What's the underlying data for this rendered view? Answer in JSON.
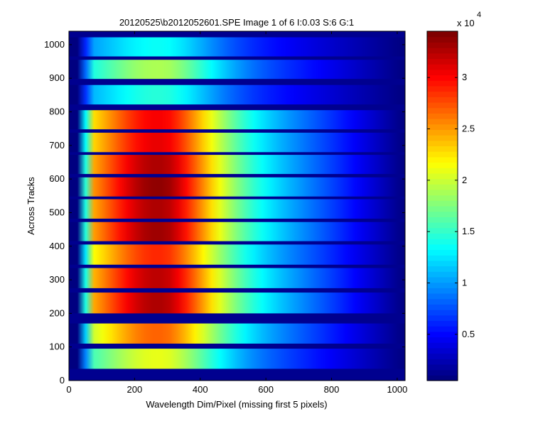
{
  "chart_data": {
    "type": "heatmap",
    "title": "20120525\\b2012052601.SPE  Image 1 of 6  I:0.03  S:6  G:1",
    "xlabel": "Wavelength Dim/Pixel (missing first 5 pixels)",
    "ylabel": "Across Tracks",
    "xlim": [
      0,
      1024
    ],
    "ylim": [
      0,
      1040
    ],
    "x_ticks": [
      "0",
      "200",
      "400",
      "600",
      "800",
      "1000"
    ],
    "y_ticks": [
      "0",
      "100",
      "200",
      "300",
      "400",
      "500",
      "600",
      "700",
      "800",
      "900",
      "1000"
    ],
    "colormap": "jet",
    "colorbar": {
      "range": [
        500,
        34500
      ],
      "multiplier": "x 10",
      "exponent": "4",
      "ticks": [
        "0.5",
        "1",
        "1.5",
        "2",
        "2.5",
        "3"
      ]
    },
    "tracks": [
      {
        "y0": 35,
        "y1": 95,
        "peak": 21000
      },
      {
        "y0": 110,
        "y1": 170,
        "peak": 27000
      },
      {
        "y0": 200,
        "y1": 262,
        "peak": 33000
      },
      {
        "y0": 275,
        "y1": 335,
        "peak": 32500
      },
      {
        "y0": 345,
        "y1": 405,
        "peak": 29000
      },
      {
        "y0": 415,
        "y1": 472,
        "peak": 33500
      },
      {
        "y0": 482,
        "y1": 540,
        "peak": 33000
      },
      {
        "y0": 548,
        "y1": 605,
        "peak": 34000
      },
      {
        "y0": 615,
        "y1": 672,
        "peak": 33000
      },
      {
        "y0": 680,
        "y1": 738,
        "peak": 31000
      },
      {
        "y0": 748,
        "y1": 805,
        "peak": 30500
      },
      {
        "y0": 822,
        "y1": 880,
        "peak": 14500
      },
      {
        "y0": 898,
        "y1": 955,
        "peak": 19000
      },
      {
        "y0": 965,
        "y1": 1022,
        "peak": 13500
      }
    ]
  }
}
